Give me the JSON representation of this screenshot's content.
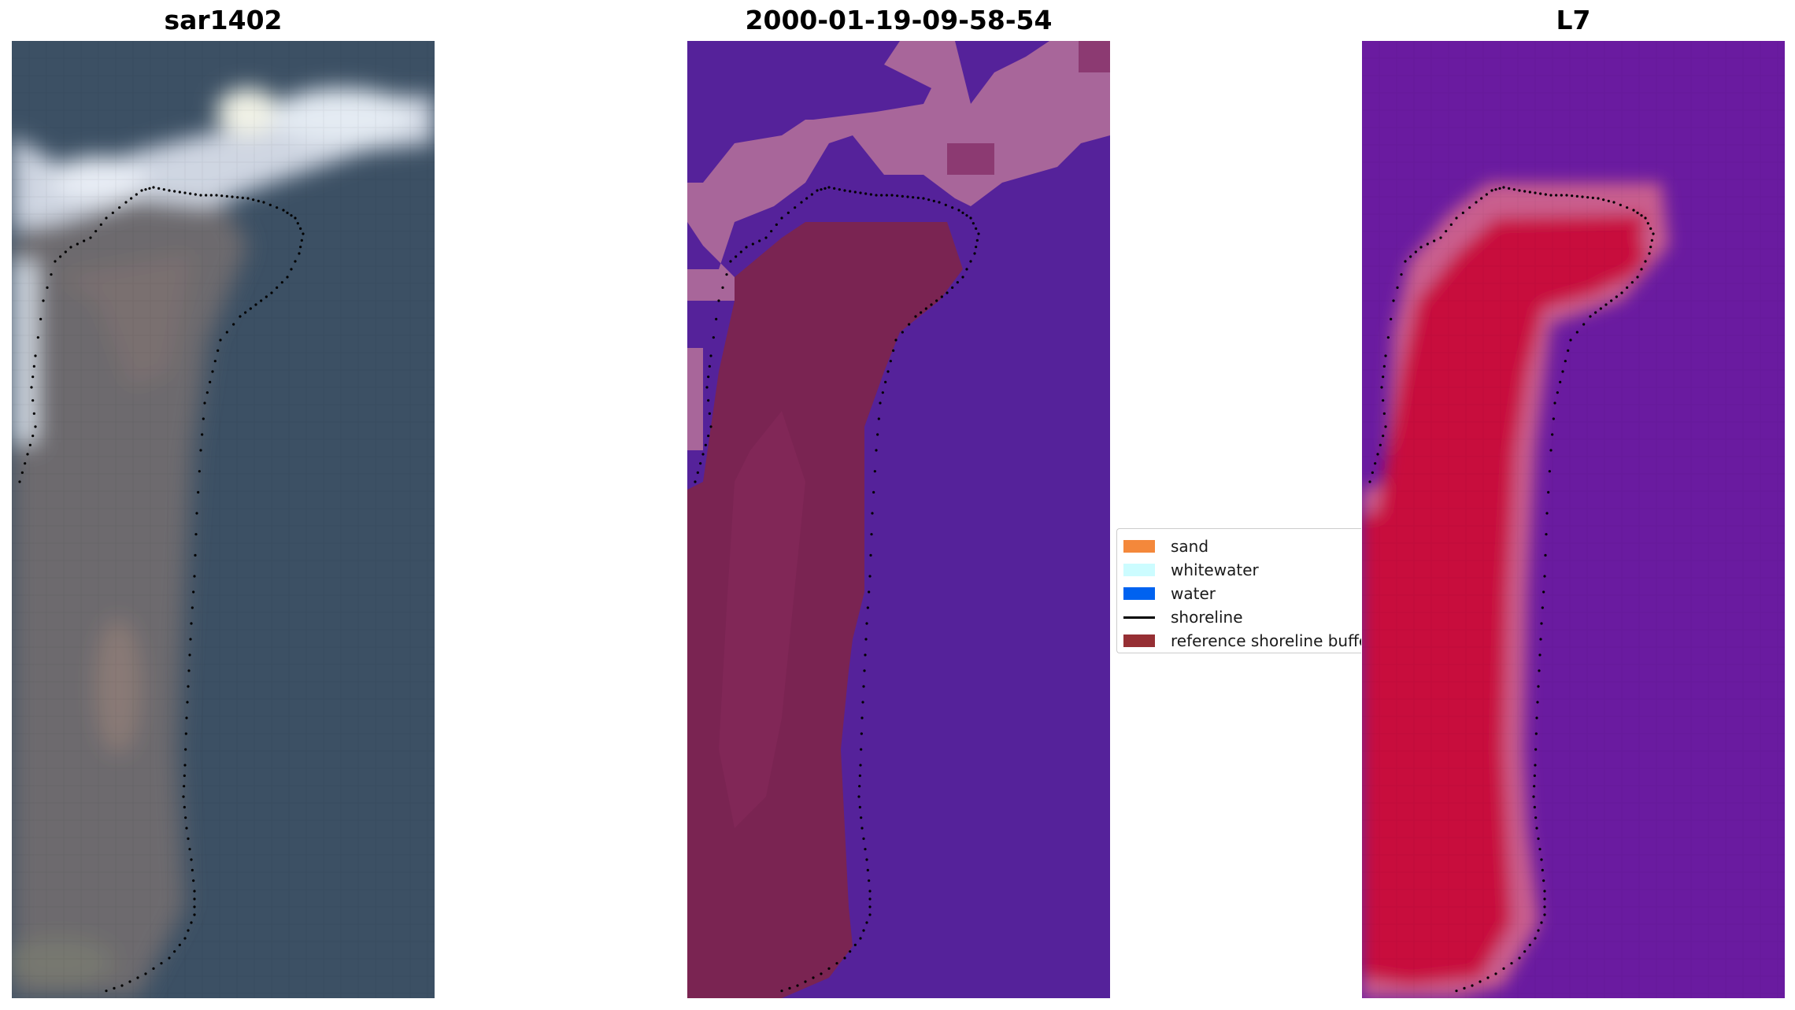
{
  "panels": {
    "left_title": "sar1402",
    "middle_title": "2000-01-19-09-58-54",
    "right_title": "L7"
  },
  "legend": {
    "items": [
      {
        "label": "sand",
        "color": "#f4883b",
        "kind": "patch"
      },
      {
        "label": "whitewater",
        "color": "#ccfcff",
        "kind": "patch"
      },
      {
        "label": "water",
        "color": "#0062f0",
        "kind": "patch"
      },
      {
        "label": "shoreline",
        "color": "#000000",
        "kind": "line"
      },
      {
        "label": "reference shoreline buffer",
        "color": "#962f34",
        "kind": "patch"
      }
    ]
  },
  "colors": {
    "rgb_water": "#3a4e63",
    "rgb_land": "#6b6a70",
    "rgb_cloud": "#dfe6ee",
    "class_water": "#55229a",
    "class_cloud_overlay": "#a8669a",
    "class_buffer": "#7a2452",
    "index_background": "#6a1ba0",
    "index_high": "#c8103e",
    "index_edge": "#c95e8e"
  }
}
